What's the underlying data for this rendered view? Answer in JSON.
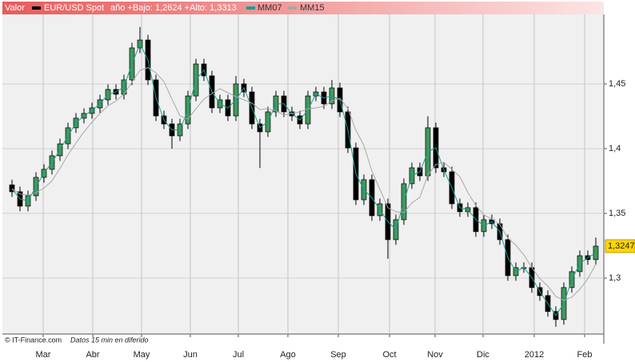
{
  "chart_data": {
    "type": "candlestick",
    "header_label": "Valor",
    "range_note": "año +Bajo: 1,2624 +Alto: 1,3313",
    "footer_source": "© IT-Finance.com",
    "footer_note": "Datos 15 min en diferido",
    "up_color": "#3d9a5c",
    "down_color": "#000000",
    "grid": true,
    "ylim": [
      1.2568,
      1.5037
    ],
    "yticks": [
      {
        "value": 1.3,
        "label": "1,3"
      },
      {
        "value": 1.35,
        "label": "1,35"
      },
      {
        "value": 1.4,
        "label": "1,4"
      },
      {
        "value": 1.45,
        "label": "1,45"
      }
    ],
    "xlim": [
      -1.2,
      74.0
    ],
    "xticks": [
      {
        "value": 3.9,
        "label": "Mar"
      },
      {
        "value": 10.1,
        "label": "Abr"
      },
      {
        "value": 16.2,
        "label": "May"
      },
      {
        "value": 22.3,
        "label": "Jun"
      },
      {
        "value": 28.3,
        "label": "Jul"
      },
      {
        "value": 34.5,
        "label": "Ago"
      },
      {
        "value": 40.8,
        "label": "Sep"
      },
      {
        "value": 47.2,
        "label": "Oct"
      },
      {
        "value": 52.9,
        "label": "Nov"
      },
      {
        "value": 58.9,
        "label": "Dic"
      },
      {
        "value": 65.3,
        "label": "2012"
      },
      {
        "value": 71.6,
        "label": "Feb"
      }
    ],
    "series": [
      {
        "name": "EUR/USD Spot",
        "color": "#000000",
        "last_value_label": "1,3247",
        "open": [
          1.372,
          1.3667,
          1.3556,
          1.3636,
          1.3778,
          1.384,
          1.3945,
          1.4037,
          1.4161,
          1.4235,
          1.4272,
          1.4315,
          1.4377,
          1.4457,
          1.442,
          1.4531,
          1.4778,
          1.4839,
          1.4531,
          1.4253,
          1.4191,
          1.4099,
          1.4191,
          1.4407,
          1.4654,
          1.4562,
          1.4315,
          1.4377,
          1.4253,
          1.45,
          1.4438,
          1.4191,
          1.413,
          1.4284,
          1.4407,
          1.4284,
          1.4253,
          1.4191,
          1.4407,
          1.4438,
          1.4346,
          1.4469,
          1.4284,
          1.4006,
          1.3605,
          1.376,
          1.3482,
          1.3574,
          1.3297,
          1.3451,
          1.3729,
          1.3852,
          1.379,
          1.4161,
          1.3852,
          1.3821,
          1.3574,
          1.3513,
          1.3544,
          1.3359,
          1.3451,
          1.342,
          1.3297,
          1.3019,
          1.3081,
          1.3081,
          1.2927,
          1.2865,
          1.2742,
          1.268,
          1.2927,
          1.305,
          1.3173,
          1.3143
        ],
        "high": [
          1.376,
          1.3707,
          1.3676,
          1.3818,
          1.388,
          1.3985,
          1.4077,
          1.4201,
          1.4275,
          1.4312,
          1.4355,
          1.4417,
          1.4497,
          1.4497,
          1.4571,
          1.4818,
          1.494,
          1.4879,
          1.4571,
          1.4293,
          1.4231,
          1.4231,
          1.4447,
          1.4694,
          1.4694,
          1.4602,
          1.4417,
          1.4417,
          1.456,
          1.454,
          1.4478,
          1.4231,
          1.4324,
          1.4447,
          1.4447,
          1.4324,
          1.4293,
          1.4447,
          1.4478,
          1.4478,
          1.453,
          1.4509,
          1.4324,
          1.4046,
          1.38,
          1.38,
          1.3614,
          1.3614,
          1.3491,
          1.3769,
          1.3892,
          1.3892,
          1.425,
          1.4201,
          1.3892,
          1.3861,
          1.3614,
          1.3584,
          1.3584,
          1.3491,
          1.3491,
          1.346,
          1.3337,
          1.3121,
          1.3121,
          1.3121,
          1.2967,
          1.2905,
          1.2782,
          1.2967,
          1.309,
          1.3213,
          1.3213,
          1.3313
        ],
        "low": [
          1.3627,
          1.3516,
          1.3516,
          1.3596,
          1.3738,
          1.38,
          1.3905,
          1.3997,
          1.4121,
          1.4195,
          1.4232,
          1.4275,
          1.4337,
          1.438,
          1.438,
          1.4491,
          1.4738,
          1.4491,
          1.4213,
          1.4151,
          1.4,
          1.4059,
          1.4151,
          1.4367,
          1.4522,
          1.4275,
          1.4275,
          1.4213,
          1.4213,
          1.4398,
          1.4151,
          1.385,
          1.409,
          1.4244,
          1.4244,
          1.4213,
          1.4151,
          1.4151,
          1.4367,
          1.4306,
          1.4306,
          1.4244,
          1.3966,
          1.3565,
          1.3565,
          1.3442,
          1.3442,
          1.315,
          1.3257,
          1.3411,
          1.3689,
          1.375,
          1.375,
          1.3812,
          1.3781,
          1.3534,
          1.3473,
          1.3473,
          1.3319,
          1.3319,
          1.338,
          1.3257,
          1.2979,
          1.2979,
          1.3041,
          1.2887,
          1.2825,
          1.2702,
          1.2624,
          1.264,
          1.2887,
          1.301,
          1.3103,
          1.3103
        ],
        "close": [
          1.3667,
          1.3556,
          1.3636,
          1.3778,
          1.384,
          1.3945,
          1.4037,
          1.4161,
          1.4235,
          1.4272,
          1.4315,
          1.4377,
          1.4457,
          1.442,
          1.4531,
          1.4778,
          1.4839,
          1.4531,
          1.4253,
          1.4191,
          1.4099,
          1.4191,
          1.4407,
          1.4654,
          1.4562,
          1.4315,
          1.4377,
          1.4253,
          1.45,
          1.4438,
          1.4191,
          1.413,
          1.4284,
          1.4407,
          1.4284,
          1.4253,
          1.4191,
          1.4407,
          1.4438,
          1.4346,
          1.4469,
          1.4284,
          1.4006,
          1.3605,
          1.376,
          1.3482,
          1.3574,
          1.3297,
          1.3451,
          1.3729,
          1.3852,
          1.379,
          1.4161,
          1.3852,
          1.3821,
          1.3574,
          1.3513,
          1.3544,
          1.3359,
          1.3451,
          1.342,
          1.3297,
          1.3019,
          1.3081,
          1.3081,
          1.2927,
          1.2865,
          1.2742,
          1.268,
          1.2927,
          1.305,
          1.3173,
          1.3143,
          1.3247
        ]
      },
      {
        "name": "MM07",
        "color": "#1a9e92",
        "values": [
          1.369,
          1.3612,
          1.3596,
          1.3707,
          1.3809,
          1.3893,
          1.3991,
          1.4099,
          1.4198,
          1.4254,
          1.4294,
          1.4346,
          1.4417,
          1.4439,
          1.4476,
          1.4655,
          1.4809,
          1.4685,
          1.4392,
          1.4222,
          1.4145,
          1.4145,
          1.4299,
          1.4531,
          1.4608,
          1.4439,
          1.4346,
          1.4315,
          1.4377,
          1.4469,
          1.4315,
          1.4161,
          1.4207,
          1.4346,
          1.4346,
          1.4269,
          1.4222,
          1.4299,
          1.4423,
          1.4392,
          1.4408,
          1.4377,
          1.4145,
          1.3806,
          1.3683,
          1.3621,
          1.3528,
          1.3436,
          1.3374,
          1.359,
          1.3791,
          1.3821,
          1.3976,
          1.4007,
          1.3837,
          1.3698,
          1.3544,
          1.3529,
          1.3452,
          1.3405,
          1.3436,
          1.3359,
          1.3158,
          1.305,
          1.3081,
          1.3004,
          1.2896,
          1.2804,
          1.2711,
          1.2804,
          1.2989,
          1.3112,
          1.3158,
          1.3195
        ]
      },
      {
        "name": "MM15",
        "color": "#a8a8a8",
        "values": [
          1.369,
          1.365,
          1.364,
          1.366,
          1.3695,
          1.3751,
          1.3847,
          1.3952,
          1.4044,
          1.413,
          1.4204,
          1.4272,
          1.4331,
          1.4368,
          1.442,
          1.4513,
          1.4605,
          1.4626,
          1.4586,
          1.4518,
          1.4383,
          1.4253,
          1.4228,
          1.4308,
          1.4383,
          1.4426,
          1.4463,
          1.4432,
          1.4401,
          1.4377,
          1.4352,
          1.4302,
          1.4309,
          1.429,
          1.4259,
          1.4272,
          1.4284,
          1.4308,
          1.4315,
          1.4327,
          1.437,
          1.4389,
          1.4309,
          1.4142,
          1.4025,
          1.3827,
          1.3685,
          1.3544,
          1.3513,
          1.3507,
          1.3581,
          1.3624,
          1.3797,
          1.3877,
          1.3895,
          1.384,
          1.3784,
          1.3661,
          1.3562,
          1.3488,
          1.3457,
          1.3414,
          1.3309,
          1.3254,
          1.318,
          1.3081,
          1.2995,
          1.2939,
          1.2859,
          1.2828,
          1.2853,
          1.2914,
          1.2995,
          1.3108
        ]
      }
    ]
  }
}
